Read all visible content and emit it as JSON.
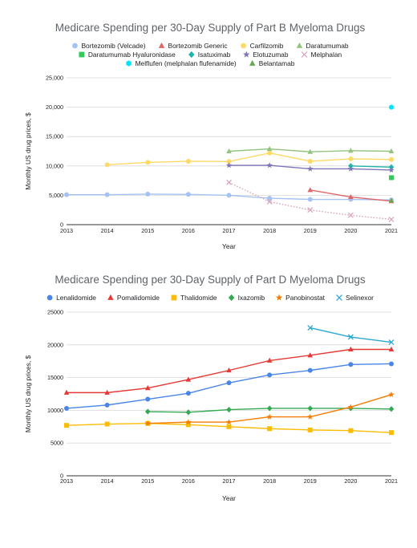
{
  "chart_data": [
    {
      "type": "line",
      "title": "Medicare Spending per 30-Day Supply of Part B Myeloma Drugs",
      "xlabel": "Year",
      "ylabel": "Monthly US drug prices, $",
      "x": [
        2013,
        2014,
        2015,
        2016,
        2017,
        2018,
        2019,
        2020,
        2021
      ],
      "ylim": [
        0,
        25000
      ],
      "yticks": [
        "0",
        "5,000",
        "10,000",
        "15,000",
        "20,000",
        "25,000"
      ],
      "grid": true,
      "legend": "top",
      "series": [
        {
          "name": "Bortezomib (Velcade)",
          "color": "#a4c2f4",
          "marker": "circle",
          "line": "solid",
          "values": [
            5100,
            5100,
            5200,
            5150,
            5000,
            4500,
            4300,
            4300,
            4200
          ]
        },
        {
          "name": "Bortezomib Generic",
          "color": "#e06666",
          "marker": "triangle",
          "line": "solid",
          "values": [
            null,
            null,
            null,
            null,
            null,
            null,
            5900,
            4700,
            4000
          ]
        },
        {
          "name": "Carfilzomib",
          "color": "#ffd966",
          "marker": "circle",
          "line": "solid",
          "values": [
            null,
            10200,
            10600,
            10800,
            10750,
            12200,
            10800,
            11200,
            11100
          ]
        },
        {
          "name": "Daratumumab",
          "color": "#93c47d",
          "marker": "triangle",
          "line": "solid",
          "values": [
            null,
            null,
            null,
            null,
            12500,
            12900,
            12400,
            12600,
            12500
          ]
        },
        {
          "name": "Daratumumab Hyaluronidase",
          "color": "#34c759",
          "marker": "square",
          "line": "none",
          "values": [
            null,
            null,
            null,
            null,
            null,
            null,
            null,
            null,
            8000
          ]
        },
        {
          "name": "Isatuximab",
          "color": "#20b2aa",
          "marker": "diamond",
          "line": "solid",
          "values": [
            null,
            null,
            null,
            null,
            null,
            null,
            null,
            10000,
            9800
          ]
        },
        {
          "name": "Elotuzumab",
          "color": "#7e75b7",
          "marker": "star",
          "line": "solid",
          "values": [
            null,
            null,
            null,
            null,
            10100,
            10100,
            9500,
            9500,
            9300
          ]
        },
        {
          "name": "Melphalan",
          "color": "#d5a6bd",
          "marker": "x",
          "line": "dotted",
          "values": [
            null,
            null,
            null,
            null,
            7200,
            3900,
            2500,
            1600,
            900
          ]
        },
        {
          "name": "Melflufen (melphalan flufenamide)",
          "color": "#00e5ff",
          "marker": "hexagon",
          "line": "none",
          "values": [
            null,
            null,
            null,
            null,
            null,
            null,
            null,
            null,
            20000
          ]
        },
        {
          "name": "Belantamab",
          "color": "#6aa84f",
          "marker": "triangle",
          "line": "none",
          "values": [
            null,
            null,
            null,
            null,
            null,
            null,
            null,
            null,
            4100
          ]
        }
      ]
    },
    {
      "type": "line",
      "title": "Medicare Spending per 30-Day Supply of Part D Myeloma Drugs",
      "xlabel": "Year",
      "ylabel": "Monthly US drug prices, $",
      "x": [
        2013,
        2014,
        2015,
        2016,
        2017,
        2018,
        2019,
        2020,
        2021
      ],
      "ylim": [
        0,
        25000
      ],
      "yticks": [
        "0",
        "5000",
        "10000",
        "15000",
        "20000",
        "25000"
      ],
      "grid": true,
      "legend": "top",
      "series": [
        {
          "name": "Lenalidomide",
          "color": "#4a86e8",
          "marker": "circle",
          "line": "solid",
          "values": [
            10300,
            10800,
            11700,
            12600,
            14200,
            15400,
            16100,
            17000,
            17100
          ]
        },
        {
          "name": "Pomalidomide",
          "color": "#e53935",
          "marker": "triangle",
          "line": "solid",
          "values": [
            12700,
            12700,
            13400,
            14700,
            16100,
            17600,
            18400,
            19300,
            19300
          ]
        },
        {
          "name": "Thalidomide",
          "color": "#fbbc04",
          "marker": "square",
          "line": "solid",
          "values": [
            7700,
            7900,
            8000,
            7800,
            7500,
            7200,
            7000,
            6900,
            6600
          ]
        },
        {
          "name": "Ixazomib",
          "color": "#34a853",
          "marker": "diamond",
          "line": "solid",
          "values": [
            null,
            null,
            9800,
            9700,
            10100,
            10300,
            10300,
            10300,
            10200
          ]
        },
        {
          "name": "Panobinostat",
          "color": "#f57c00",
          "marker": "star",
          "line": "solid",
          "values": [
            null,
            null,
            8000,
            8200,
            8200,
            9000,
            9000,
            10500,
            12400
          ]
        },
        {
          "name": "Selinexor",
          "color": "#2ca7d4",
          "marker": "x",
          "line": "solid",
          "values": [
            null,
            null,
            null,
            null,
            null,
            null,
            22600,
            21200,
            20400
          ]
        }
      ]
    }
  ]
}
